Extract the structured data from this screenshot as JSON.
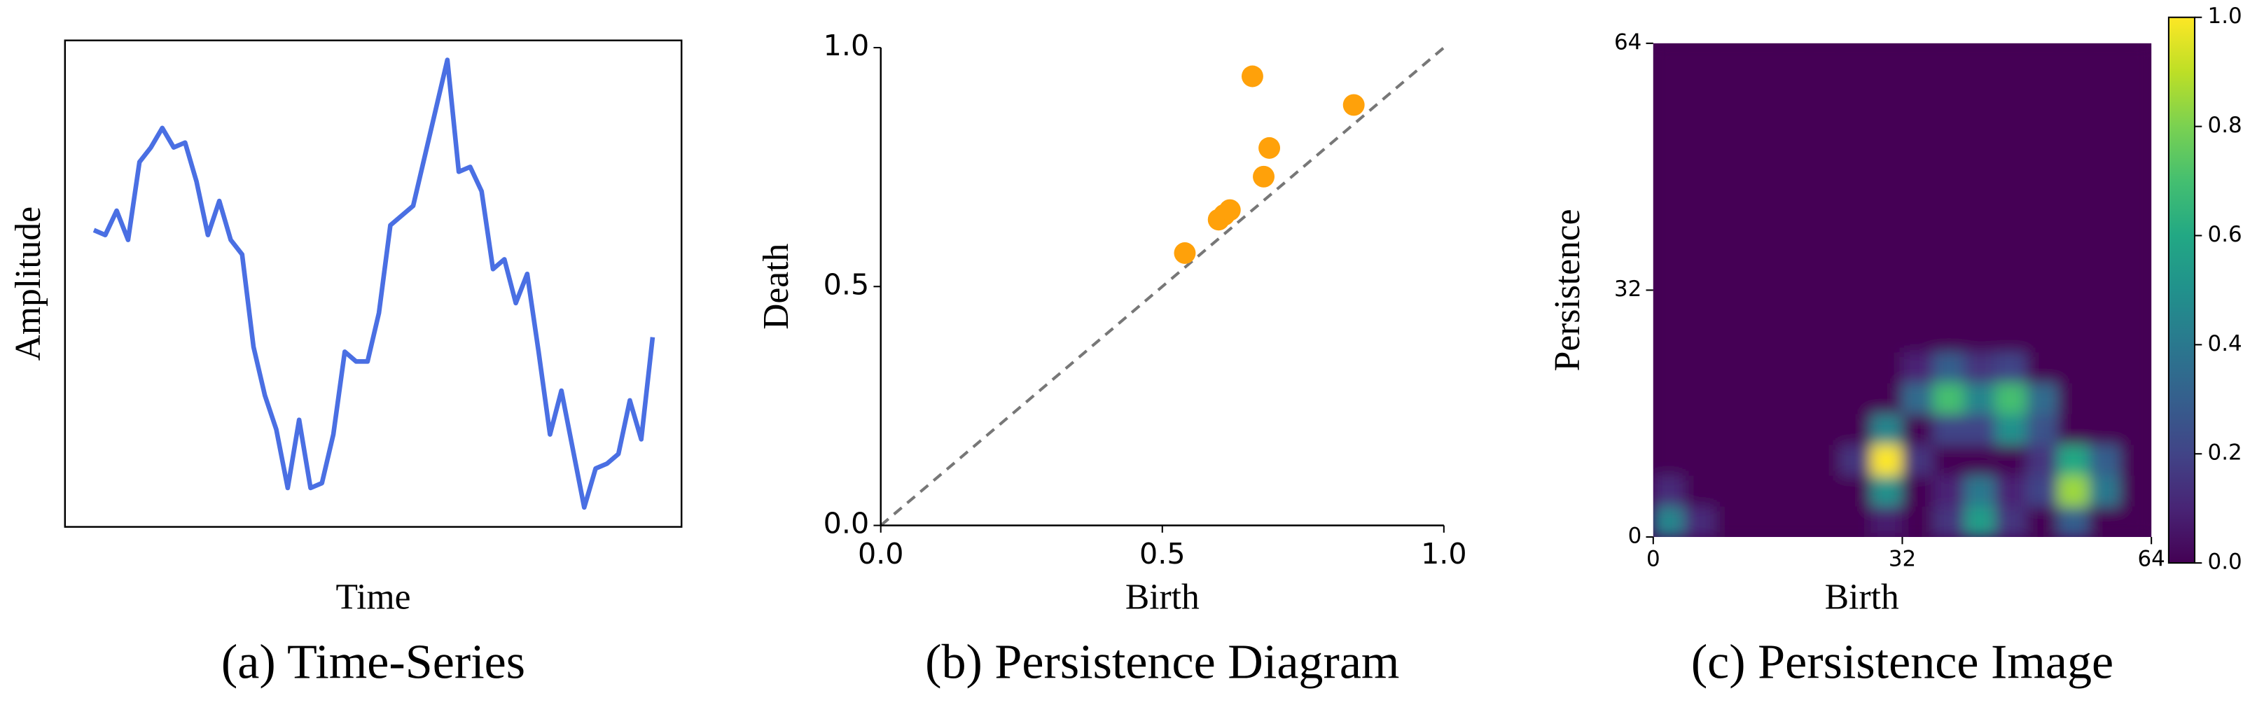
{
  "chart_data": [
    {
      "type": "line",
      "caption": "(a) Time-Series",
      "xlabel": "Time",
      "ylabel": "Amplitude",
      "color": "#4a6fe3",
      "ylim": [
        0,
        1
      ],
      "values": [
        0.61,
        0.6,
        0.65,
        0.59,
        0.75,
        0.78,
        0.82,
        0.78,
        0.79,
        0.71,
        0.6,
        0.67,
        0.59,
        0.56,
        0.37,
        0.27,
        0.2,
        0.08,
        0.22,
        0.08,
        0.09,
        0.19,
        0.36,
        0.34,
        0.34,
        0.44,
        0.62,
        0.64,
        0.66,
        0.76,
        0.86,
        0.96,
        0.73,
        0.74,
        0.69,
        0.53,
        0.55,
        0.46,
        0.52,
        0.36,
        0.19,
        0.28,
        0.16,
        0.04,
        0.12,
        0.13,
        0.15,
        0.26,
        0.18,
        0.39
      ]
    },
    {
      "type": "scatter",
      "caption": "(b) Persistence Diagram",
      "xlabel": "Birth",
      "ylabel": "Death",
      "color": "#ffa10a",
      "diagonal": true,
      "x": [
        0.54,
        0.66,
        0.84,
        0.69,
        0.68,
        0.6,
        0.61,
        0.62
      ],
      "y": [
        0.57,
        0.94,
        0.88,
        0.79,
        0.73,
        0.64,
        0.65,
        0.66
      ],
      "xlim": [
        0,
        1
      ],
      "ylim": [
        0,
        1
      ],
      "xticks": [
        {
          "value": 0,
          "label": "0.0"
        },
        {
          "value": 0.5,
          "label": "0.5"
        },
        {
          "value": 1,
          "label": "1.0"
        }
      ],
      "yticks": [
        {
          "value": 0,
          "label": "0.0"
        },
        {
          "value": 0.5,
          "label": "0.5"
        },
        {
          "value": 1,
          "label": "1.0"
        }
      ]
    },
    {
      "type": "heatmap",
      "caption": "(c) Persistence Image",
      "xlabel": "Birth",
      "ylabel": "Persistence",
      "colormap": "viridis",
      "xlim": [
        0,
        64
      ],
      "ylim": [
        0,
        64
      ],
      "xticks": [
        0,
        32,
        64
      ],
      "yticks": [
        0,
        32,
        64
      ],
      "z": [
        [
          0.45,
          0.12,
          0,
          0,
          0,
          0,
          0,
          0.08,
          0,
          0.15,
          0.55,
          0.15,
          0,
          0.3,
          0,
          0
        ],
        [
          0.12,
          0,
          0,
          0,
          0,
          0,
          0,
          0.5,
          0,
          0.1,
          0.4,
          0.1,
          0.2,
          0.85,
          0.4,
          0
        ],
        [
          0,
          0,
          0,
          0,
          0,
          0,
          0.15,
          1.0,
          0.15,
          0,
          0,
          0,
          0.15,
          0.6,
          0.3,
          0
        ],
        [
          0,
          0,
          0,
          0,
          0,
          0,
          0,
          0.45,
          0,
          0.2,
          0.2,
          0.5,
          0.25,
          0,
          0,
          0
        ],
        [
          0,
          0,
          0,
          0,
          0,
          0,
          0,
          0,
          0.35,
          0.7,
          0.45,
          0.7,
          0.35,
          0,
          0,
          0
        ],
        [
          0,
          0,
          0,
          0,
          0,
          0,
          0,
          0,
          0.1,
          0.3,
          0.15,
          0.2,
          0,
          0,
          0,
          0
        ],
        [
          0,
          0,
          0,
          0,
          0,
          0,
          0,
          0,
          0,
          0,
          0,
          0,
          0,
          0,
          0,
          0
        ],
        [
          0,
          0,
          0,
          0,
          0,
          0,
          0,
          0,
          0,
          0,
          0,
          0,
          0,
          0,
          0,
          0
        ],
        [
          0,
          0,
          0,
          0,
          0,
          0,
          0,
          0,
          0,
          0,
          0,
          0,
          0,
          0,
          0,
          0
        ],
        [
          0,
          0,
          0,
          0,
          0,
          0,
          0,
          0,
          0,
          0,
          0,
          0,
          0,
          0,
          0,
          0
        ],
        [
          0,
          0,
          0,
          0,
          0,
          0,
          0,
          0,
          0,
          0,
          0,
          0,
          0,
          0,
          0,
          0
        ],
        [
          0,
          0,
          0,
          0,
          0,
          0,
          0,
          0,
          0,
          0,
          0,
          0,
          0,
          0,
          0,
          0
        ],
        [
          0,
          0,
          0,
          0,
          0,
          0,
          0,
          0,
          0,
          0,
          0,
          0,
          0,
          0,
          0,
          0
        ],
        [
          0,
          0,
          0,
          0,
          0,
          0,
          0,
          0,
          0,
          0,
          0,
          0,
          0,
          0,
          0,
          0
        ],
        [
          0,
          0,
          0,
          0,
          0,
          0,
          0,
          0,
          0,
          0,
          0,
          0,
          0,
          0,
          0,
          0
        ],
        [
          0,
          0,
          0,
          0,
          0,
          0,
          0,
          0,
          0,
          0,
          0,
          0,
          0,
          0,
          0,
          0
        ]
      ],
      "colorbar": {
        "lim": [
          0,
          1
        ],
        "ticks": [
          {
            "value": 0,
            "label": "0.0"
          },
          {
            "value": 0.2,
            "label": "0.2"
          },
          {
            "value": 0.4,
            "label": "0.4"
          },
          {
            "value": 0.6,
            "label": "0.6"
          },
          {
            "value": 0.8,
            "label": "0.8"
          },
          {
            "value": 1,
            "label": "1.0"
          }
        ]
      }
    }
  ]
}
